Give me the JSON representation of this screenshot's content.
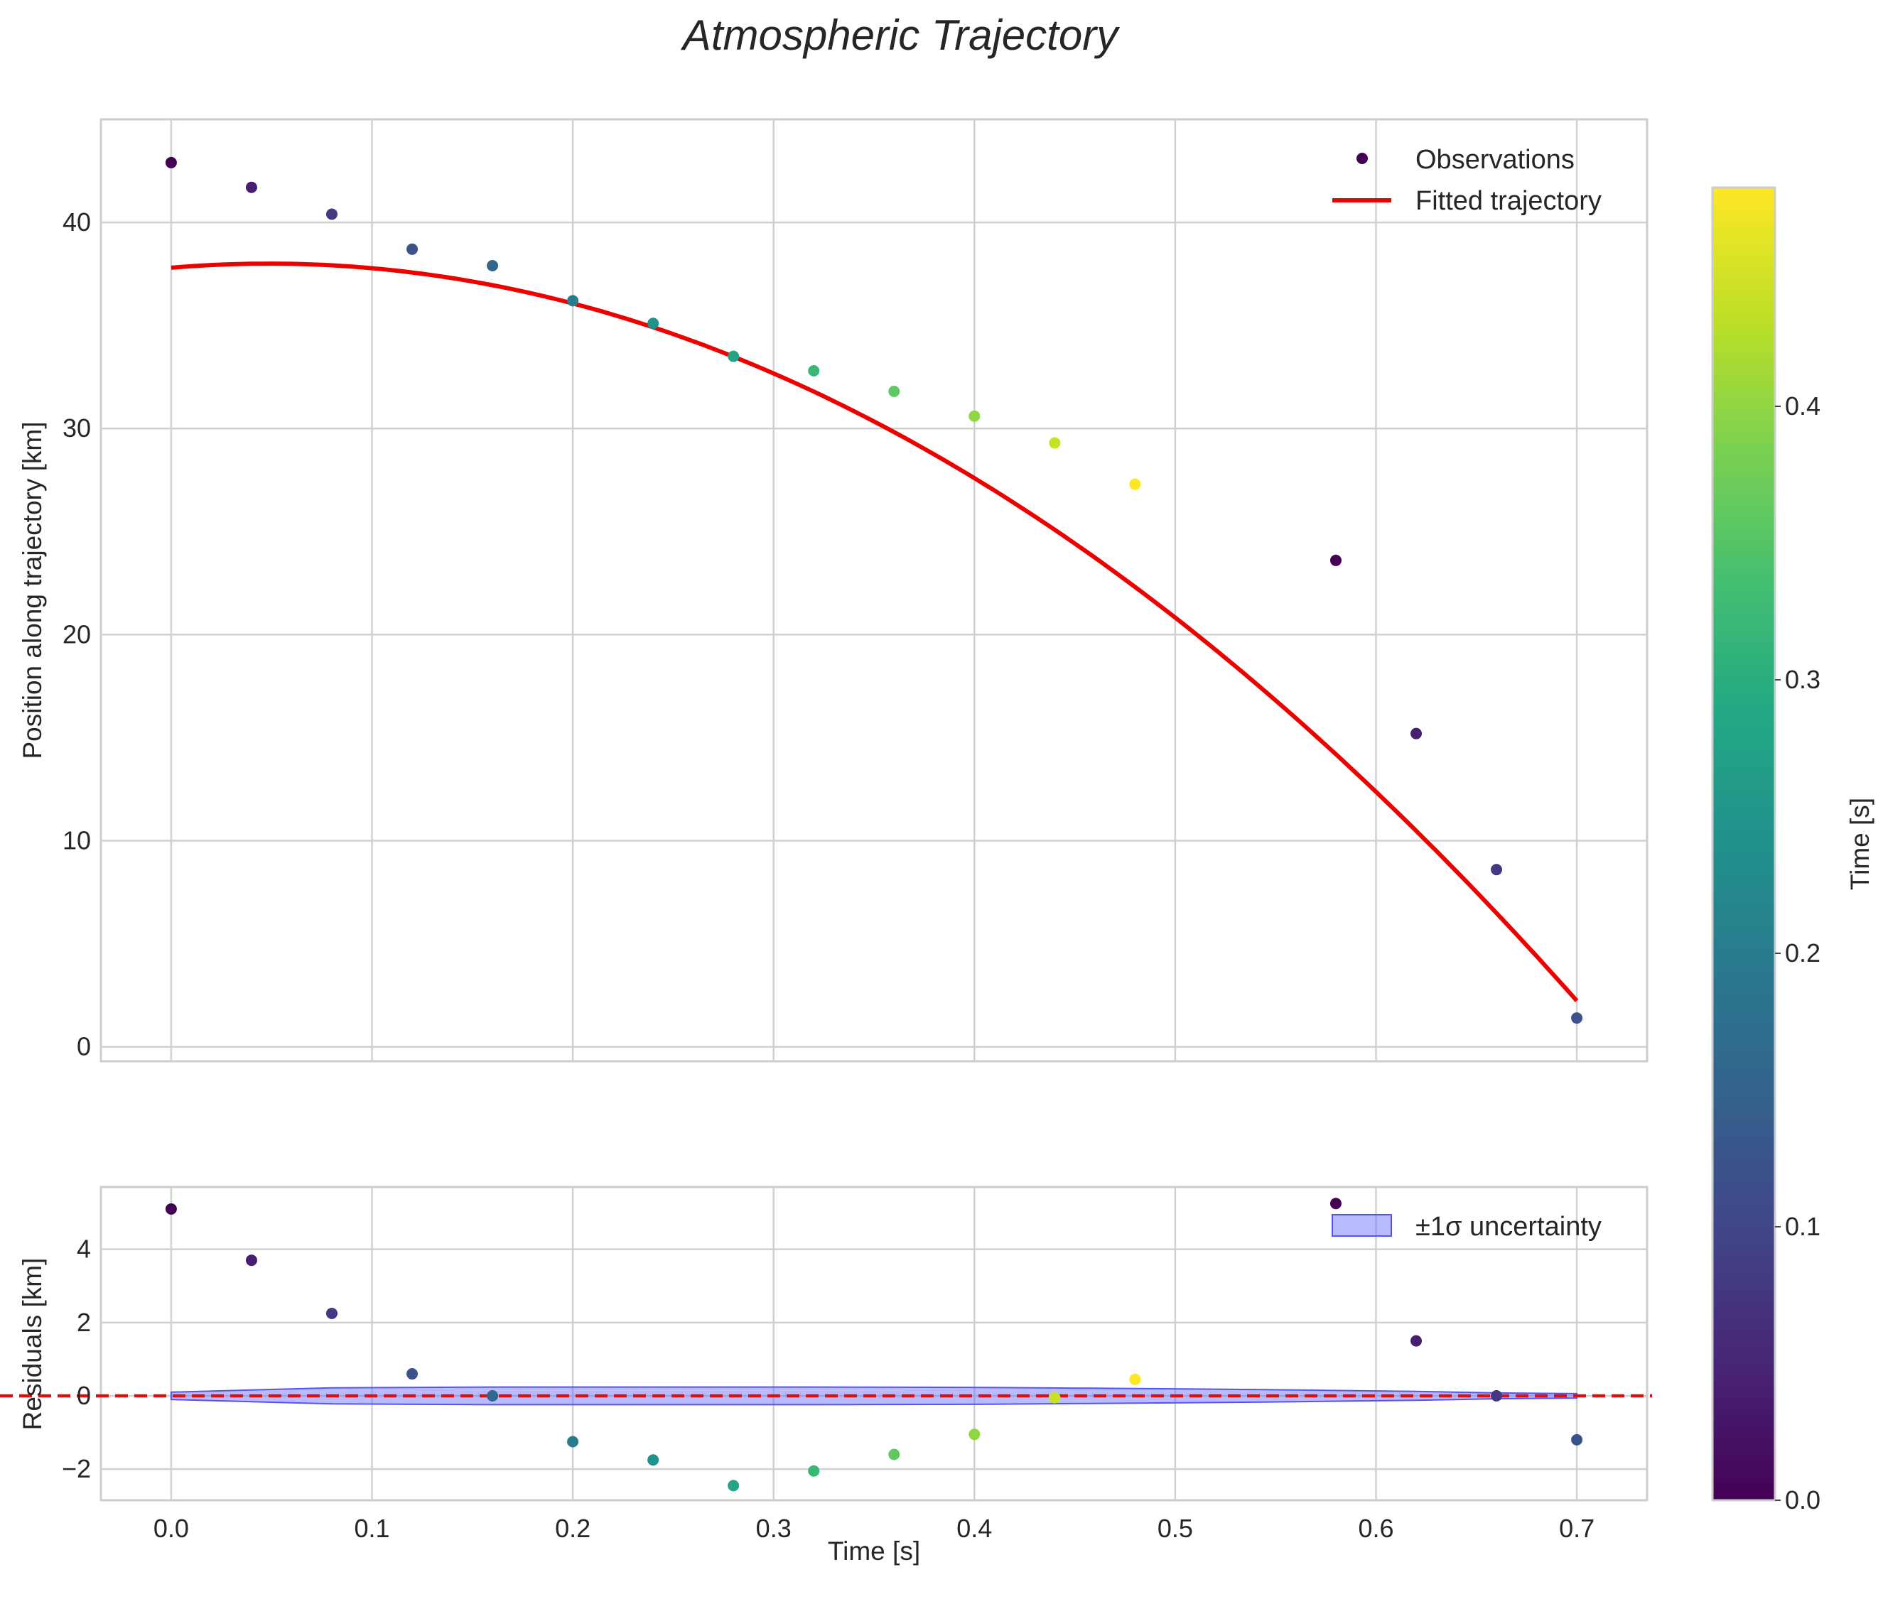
{
  "chart_data": {
    "title": "Atmospheric Trajectory",
    "type": "scatter",
    "colors": {
      "fit_line": "#ee0000",
      "zero_line": "#dd1111",
      "band_fill": "#6666ff",
      "grid": "#d0d0d0",
      "axes_edge": "#cccccc"
    },
    "top_panel": {
      "type": "scatter+line",
      "ylabel": "Position along trajectory [km]",
      "xlim": [
        -0.035,
        0.735
      ],
      "ylim": [
        -0.7,
        45
      ],
      "xticks": [
        0.0,
        0.1,
        0.2,
        0.3,
        0.4,
        0.5,
        0.6,
        0.7
      ],
      "yticks": [
        0,
        10,
        20,
        30,
        40
      ],
      "grid": true,
      "legend_position": "top-right",
      "legend": [
        {
          "label": "Observations",
          "kind": "marker"
        },
        {
          "label": "Fitted trajectory",
          "kind": "line"
        }
      ],
      "observations": {
        "name": "Observations",
        "x": [
          0.0,
          0.04,
          0.08,
          0.12,
          0.16,
          0.2,
          0.24,
          0.28,
          0.32,
          0.36,
          0.4,
          0.44,
          0.48,
          0.58,
          0.62,
          0.66,
          0.7
        ],
        "y": [
          42.9,
          41.7,
          40.4,
          38.7,
          37.9,
          36.2,
          35.1,
          33.5,
          32.8,
          31.8,
          30.6,
          29.3,
          27.3,
          23.6,
          15.2,
          8.6,
          1.4
        ],
        "c": [
          0.0,
          0.04,
          0.08,
          0.12,
          0.16,
          0.2,
          0.24,
          0.28,
          0.32,
          0.36,
          0.4,
          0.44,
          0.48,
          0.0,
          0.04,
          0.08,
          0.12
        ]
      },
      "fit": {
        "name": "Fitted trajectory",
        "model": "quadratic",
        "x_range": [
          0.0,
          0.7
        ],
        "coef": [
          37.8,
          8.2,
          -84.3
        ]
      }
    },
    "bottom_panel": {
      "type": "scatter+band",
      "xlabel": "Time [s]",
      "ylabel": "Residuals [km]",
      "xlim": [
        -0.035,
        0.735
      ],
      "ylim": [
        -2.85,
        5.7
      ],
      "xticks": [
        0.0,
        0.1,
        0.2,
        0.3,
        0.4,
        0.5,
        0.6,
        0.7
      ],
      "yticks": [
        -2,
        0,
        2,
        4
      ],
      "grid": true,
      "legend_position": "top-right",
      "legend": [
        {
          "label": "±1σ uncertainty",
          "kind": "patch"
        }
      ],
      "residuals": {
        "x": [
          0.0,
          0.04,
          0.08,
          0.12,
          0.16,
          0.2,
          0.24,
          0.28,
          0.32,
          0.36,
          0.4,
          0.44,
          0.48,
          0.58,
          0.62,
          0.66,
          0.7
        ],
        "y": [
          5.1,
          3.7,
          2.25,
          0.6,
          0.0,
          -1.25,
          -1.75,
          -2.45,
          -2.05,
          -1.6,
          -1.05,
          -0.05,
          0.45,
          5.25,
          1.5,
          0.0,
          -1.2
        ],
        "c": [
          0.0,
          0.04,
          0.08,
          0.12,
          0.16,
          0.2,
          0.24,
          0.28,
          0.32,
          0.36,
          0.4,
          0.44,
          0.48,
          0.0,
          0.04,
          0.08,
          0.12
        ]
      },
      "band": {
        "name": "±1σ uncertainty",
        "x": [
          0.0,
          0.08,
          0.16,
          0.24,
          0.32,
          0.4,
          0.48,
          0.56,
          0.62,
          0.66,
          0.7
        ],
        "half_width": [
          0.1,
          0.22,
          0.24,
          0.24,
          0.24,
          0.23,
          0.2,
          0.16,
          0.12,
          0.08,
          0.06
        ]
      },
      "zero_line": 0
    },
    "colorbar": {
      "label": "Time [s]",
      "range": [
        0.0,
        0.48
      ],
      "ticks": [
        0.0,
        0.1,
        0.2,
        0.3,
        0.4
      ],
      "tick_labels": [
        "0.0",
        "0.1",
        "0.2",
        "0.3",
        "0.4"
      ],
      "colormap": "viridis"
    }
  }
}
